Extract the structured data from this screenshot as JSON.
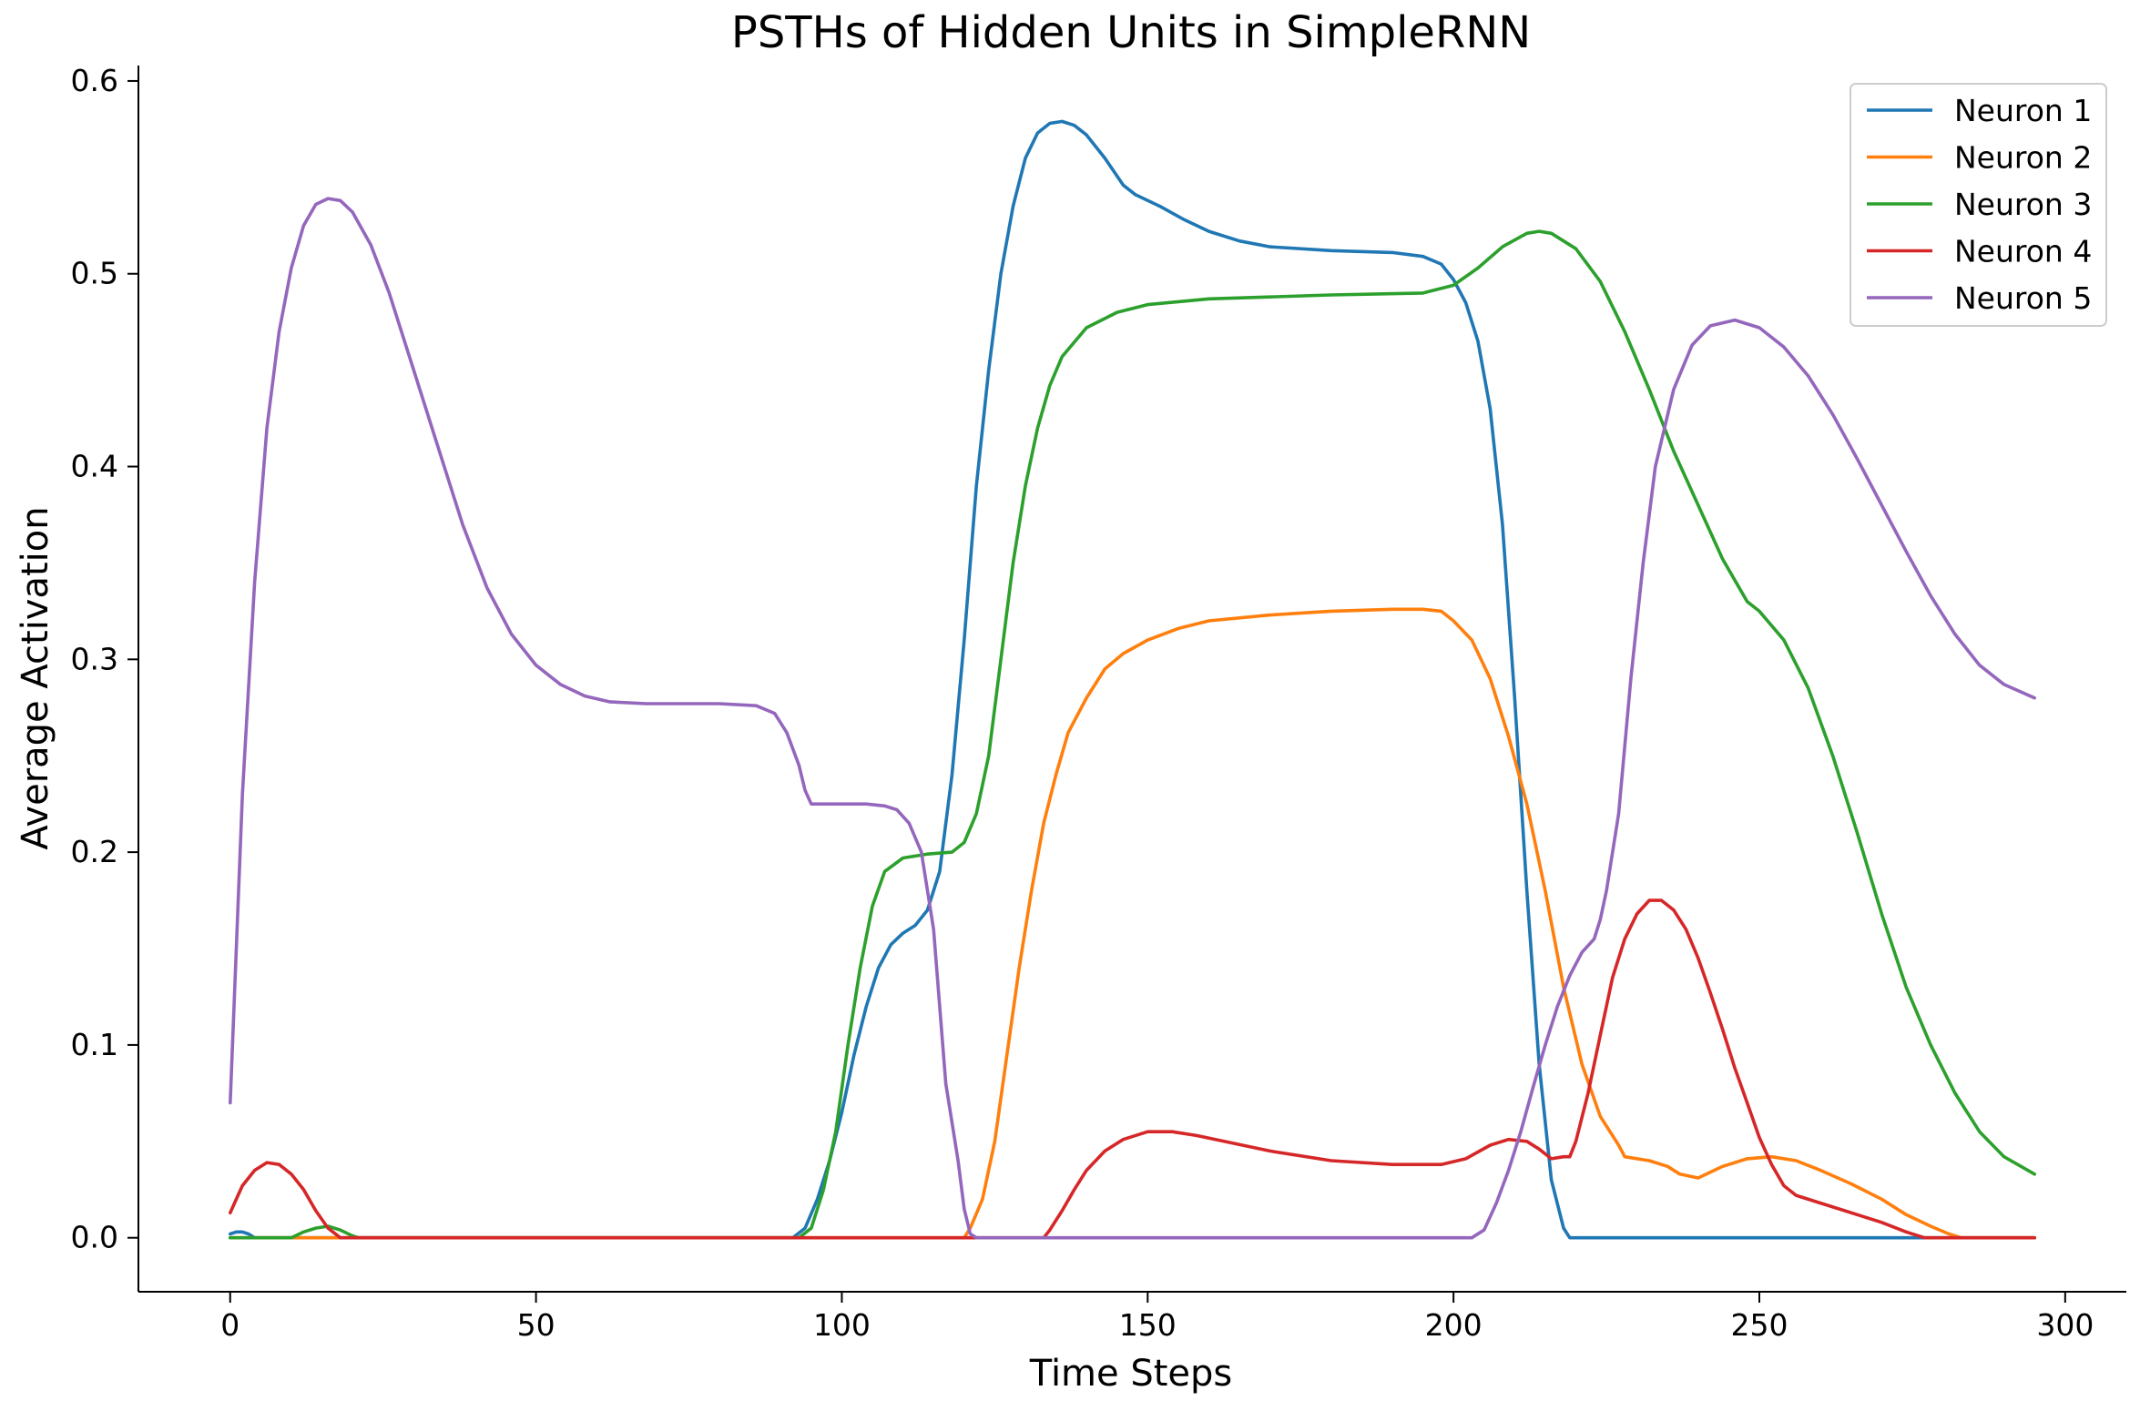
{
  "chart_data": {
    "type": "line",
    "title": "PSTHs of Hidden Units in SimpleRNN",
    "xlabel": "Time Steps",
    "ylabel": "Average Activation",
    "xlim": [
      -15,
      310
    ],
    "ylim": [
      -0.028,
      0.608
    ],
    "xticks": [
      0,
      50,
      100,
      150,
      200,
      250,
      300
    ],
    "yticks": [
      0.0,
      0.1,
      0.2,
      0.3,
      0.4,
      0.5,
      0.6
    ],
    "xtick_labels": [
      "0",
      "50",
      "100",
      "150",
      "200",
      "250",
      "300"
    ],
    "ytick_labels": [
      "0.0",
      "0.1",
      "0.2",
      "0.3",
      "0.4",
      "0.5",
      "0.6"
    ],
    "grid": false,
    "legend_position": "top-right",
    "series": [
      {
        "name": "Neuron 1",
        "color": "#1f77b4",
        "points": [
          [
            0,
            0.002
          ],
          [
            1,
            0.003
          ],
          [
            2,
            0.003
          ],
          [
            3,
            0.002
          ],
          [
            4,
            0.0
          ],
          [
            20,
            0.0
          ],
          [
            60,
            0.0
          ],
          [
            92,
            0.0
          ],
          [
            94,
            0.005
          ],
          [
            96,
            0.02
          ],
          [
            98,
            0.04
          ],
          [
            100,
            0.065
          ],
          [
            102,
            0.095
          ],
          [
            104,
            0.12
          ],
          [
            106,
            0.14
          ],
          [
            108,
            0.152
          ],
          [
            110,
            0.158
          ],
          [
            112,
            0.162
          ],
          [
            114,
            0.17
          ],
          [
            116,
            0.19
          ],
          [
            118,
            0.24
          ],
          [
            120,
            0.31
          ],
          [
            122,
            0.39
          ],
          [
            124,
            0.45
          ],
          [
            126,
            0.5
          ],
          [
            128,
            0.535
          ],
          [
            130,
            0.56
          ],
          [
            132,
            0.573
          ],
          [
            134,
            0.578
          ],
          [
            136,
            0.579
          ],
          [
            138,
            0.577
          ],
          [
            140,
            0.572
          ],
          [
            143,
            0.56
          ],
          [
            146,
            0.546
          ],
          [
            148,
            0.541
          ],
          [
            152,
            0.535
          ],
          [
            156,
            0.528
          ],
          [
            160,
            0.522
          ],
          [
            165,
            0.517
          ],
          [
            170,
            0.514
          ],
          [
            180,
            0.512
          ],
          [
            190,
            0.511
          ],
          [
            195,
            0.509
          ],
          [
            198,
            0.505
          ],
          [
            200,
            0.497
          ],
          [
            202,
            0.485
          ],
          [
            204,
            0.465
          ],
          [
            206,
            0.43
          ],
          [
            208,
            0.37
          ],
          [
            210,
            0.28
          ],
          [
            212,
            0.18
          ],
          [
            214,
            0.09
          ],
          [
            216,
            0.03
          ],
          [
            218,
            0.005
          ],
          [
            219,
            0.0
          ],
          [
            295,
            0.0
          ]
        ]
      },
      {
        "name": "Neuron 2",
        "color": "#ff7f0e",
        "points": [
          [
            0,
            0.0
          ],
          [
            60,
            0.0
          ],
          [
            120,
            0.0
          ],
          [
            121,
            0.005
          ],
          [
            123,
            0.02
          ],
          [
            125,
            0.05
          ],
          [
            127,
            0.095
          ],
          [
            129,
            0.14
          ],
          [
            131,
            0.18
          ],
          [
            133,
            0.215
          ],
          [
            135,
            0.24
          ],
          [
            137,
            0.262
          ],
          [
            140,
            0.28
          ],
          [
            143,
            0.295
          ],
          [
            146,
            0.303
          ],
          [
            150,
            0.31
          ],
          [
            155,
            0.316
          ],
          [
            160,
            0.32
          ],
          [
            170,
            0.323
          ],
          [
            180,
            0.325
          ],
          [
            190,
            0.326
          ],
          [
            195,
            0.326
          ],
          [
            198,
            0.325
          ],
          [
            200,
            0.32
          ],
          [
            203,
            0.31
          ],
          [
            206,
            0.29
          ],
          [
            209,
            0.26
          ],
          [
            212,
            0.225
          ],
          [
            215,
            0.18
          ],
          [
            218,
            0.13
          ],
          [
            221,
            0.09
          ],
          [
            224,
            0.063
          ],
          [
            227,
            0.048
          ],
          [
            228,
            0.042
          ],
          [
            232,
            0.04
          ],
          [
            235,
            0.037
          ],
          [
            237,
            0.033
          ],
          [
            240,
            0.031
          ],
          [
            244,
            0.037
          ],
          [
            248,
            0.041
          ],
          [
            252,
            0.042
          ],
          [
            256,
            0.04
          ],
          [
            260,
            0.035
          ],
          [
            265,
            0.028
          ],
          [
            270,
            0.02
          ],
          [
            274,
            0.012
          ],
          [
            278,
            0.006
          ],
          [
            281,
            0.002
          ],
          [
            283,
            0.0
          ],
          [
            295,
            0.0
          ]
        ]
      },
      {
        "name": "Neuron 3",
        "color": "#2ca02c",
        "points": [
          [
            0,
            0.0
          ],
          [
            8,
            0.0
          ],
          [
            10,
            0.0
          ],
          [
            12,
            0.003
          ],
          [
            14,
            0.005
          ],
          [
            16,
            0.006
          ],
          [
            18,
            0.004
          ],
          [
            20,
            0.001
          ],
          [
            21,
            0.0
          ],
          [
            60,
            0.0
          ],
          [
            93,
            0.0
          ],
          [
            95,
            0.005
          ],
          [
            97,
            0.025
          ],
          [
            99,
            0.055
          ],
          [
            101,
            0.1
          ],
          [
            103,
            0.14
          ],
          [
            105,
            0.172
          ],
          [
            107,
            0.19
          ],
          [
            110,
            0.197
          ],
          [
            114,
            0.199
          ],
          [
            118,
            0.2
          ],
          [
            120,
            0.205
          ],
          [
            122,
            0.22
          ],
          [
            124,
            0.25
          ],
          [
            126,
            0.3
          ],
          [
            128,
            0.35
          ],
          [
            130,
            0.39
          ],
          [
            132,
            0.42
          ],
          [
            134,
            0.442
          ],
          [
            136,
            0.457
          ],
          [
            140,
            0.472
          ],
          [
            145,
            0.48
          ],
          [
            150,
            0.484
          ],
          [
            160,
            0.487
          ],
          [
            170,
            0.488
          ],
          [
            180,
            0.489
          ],
          [
            195,
            0.49
          ],
          [
            200,
            0.494
          ],
          [
            204,
            0.503
          ],
          [
            208,
            0.514
          ],
          [
            212,
            0.521
          ],
          [
            214,
            0.522
          ],
          [
            216,
            0.521
          ],
          [
            220,
            0.513
          ],
          [
            224,
            0.496
          ],
          [
            228,
            0.47
          ],
          [
            232,
            0.44
          ],
          [
            236,
            0.408
          ],
          [
            240,
            0.38
          ],
          [
            244,
            0.352
          ],
          [
            248,
            0.33
          ],
          [
            250,
            0.325
          ],
          [
            254,
            0.31
          ],
          [
            258,
            0.285
          ],
          [
            262,
            0.25
          ],
          [
            266,
            0.21
          ],
          [
            270,
            0.168
          ],
          [
            274,
            0.13
          ],
          [
            278,
            0.1
          ],
          [
            282,
            0.075
          ],
          [
            286,
            0.055
          ],
          [
            290,
            0.042
          ],
          [
            295,
            0.033
          ]
        ]
      },
      {
        "name": "Neuron 4",
        "color": "#d62728",
        "points": [
          [
            0,
            0.013
          ],
          [
            1,
            0.02
          ],
          [
            2,
            0.027
          ],
          [
            4,
            0.035
          ],
          [
            6,
            0.039
          ],
          [
            8,
            0.038
          ],
          [
            10,
            0.033
          ],
          [
            12,
            0.025
          ],
          [
            14,
            0.014
          ],
          [
            16,
            0.005
          ],
          [
            18,
            0.0
          ],
          [
            60,
            0.0
          ],
          [
            120,
            0.0
          ],
          [
            133,
            0.0
          ],
          [
            134,
            0.004
          ],
          [
            136,
            0.014
          ],
          [
            138,
            0.025
          ],
          [
            140,
            0.035
          ],
          [
            143,
            0.045
          ],
          [
            146,
            0.051
          ],
          [
            150,
            0.055
          ],
          [
            154,
            0.055
          ],
          [
            158,
            0.053
          ],
          [
            164,
            0.049
          ],
          [
            170,
            0.045
          ],
          [
            180,
            0.04
          ],
          [
            190,
            0.038
          ],
          [
            198,
            0.038
          ],
          [
            202,
            0.041
          ],
          [
            206,
            0.048
          ],
          [
            209,
            0.051
          ],
          [
            212,
            0.05
          ],
          [
            214,
            0.046
          ],
          [
            216,
            0.041
          ],
          [
            218,
            0.042
          ],
          [
            219,
            0.042
          ],
          [
            220,
            0.05
          ],
          [
            222,
            0.075
          ],
          [
            224,
            0.105
          ],
          [
            226,
            0.135
          ],
          [
            228,
            0.155
          ],
          [
            230,
            0.168
          ],
          [
            232,
            0.175
          ],
          [
            234,
            0.175
          ],
          [
            236,
            0.17
          ],
          [
            238,
            0.16
          ],
          [
            240,
            0.145
          ],
          [
            242,
            0.127
          ],
          [
            244,
            0.108
          ],
          [
            246,
            0.088
          ],
          [
            248,
            0.07
          ],
          [
            250,
            0.052
          ],
          [
            252,
            0.038
          ],
          [
            254,
            0.027
          ],
          [
            256,
            0.022
          ],
          [
            260,
            0.018
          ],
          [
            265,
            0.013
          ],
          [
            270,
            0.008
          ],
          [
            274,
            0.003
          ],
          [
            277,
            0.0
          ],
          [
            295,
            0.0
          ]
        ]
      },
      {
        "name": "Neuron 5",
        "color": "#9467bd",
        "points": [
          [
            0,
            0.07
          ],
          [
            1,
            0.15
          ],
          [
            2,
            0.23
          ],
          [
            4,
            0.34
          ],
          [
            6,
            0.42
          ],
          [
            8,
            0.47
          ],
          [
            10,
            0.503
          ],
          [
            12,
            0.525
          ],
          [
            14,
            0.536
          ],
          [
            16,
            0.539
          ],
          [
            18,
            0.538
          ],
          [
            20,
            0.532
          ],
          [
            23,
            0.515
          ],
          [
            26,
            0.49
          ],
          [
            30,
            0.45
          ],
          [
            34,
            0.41
          ],
          [
            38,
            0.37
          ],
          [
            42,
            0.337
          ],
          [
            46,
            0.313
          ],
          [
            50,
            0.297
          ],
          [
            54,
            0.287
          ],
          [
            58,
            0.281
          ],
          [
            62,
            0.278
          ],
          [
            68,
            0.277
          ],
          [
            80,
            0.277
          ],
          [
            86,
            0.276
          ],
          [
            89,
            0.272
          ],
          [
            91,
            0.262
          ],
          [
            93,
            0.245
          ],
          [
            94,
            0.232
          ],
          [
            95,
            0.225
          ],
          [
            97,
            0.225
          ],
          [
            100,
            0.225
          ],
          [
            104,
            0.225
          ],
          [
            107,
            0.224
          ],
          [
            109,
            0.222
          ],
          [
            111,
            0.215
          ],
          [
            113,
            0.2
          ],
          [
            115,
            0.16
          ],
          [
            117,
            0.08
          ],
          [
            119,
            0.04
          ],
          [
            120,
            0.015
          ],
          [
            121,
            0.002
          ],
          [
            122,
            0.0
          ],
          [
            150,
            0.0
          ],
          [
            203,
            0.0
          ],
          [
            205,
            0.004
          ],
          [
            207,
            0.018
          ],
          [
            209,
            0.035
          ],
          [
            211,
            0.055
          ],
          [
            213,
            0.078
          ],
          [
            215,
            0.1
          ],
          [
            217,
            0.12
          ],
          [
            219,
            0.136
          ],
          [
            221,
            0.148
          ],
          [
            223,
            0.155
          ],
          [
            224,
            0.165
          ],
          [
            225,
            0.18
          ],
          [
            227,
            0.22
          ],
          [
            229,
            0.29
          ],
          [
            231,
            0.35
          ],
          [
            233,
            0.4
          ],
          [
            236,
            0.44
          ],
          [
            239,
            0.463
          ],
          [
            242,
            0.473
          ],
          [
            246,
            0.476
          ],
          [
            250,
            0.472
          ],
          [
            254,
            0.462
          ],
          [
            258,
            0.447
          ],
          [
            262,
            0.427
          ],
          [
            266,
            0.404
          ],
          [
            270,
            0.38
          ],
          [
            274,
            0.356
          ],
          [
            278,
            0.333
          ],
          [
            282,
            0.313
          ],
          [
            286,
            0.297
          ],
          [
            290,
            0.287
          ],
          [
            295,
            0.28
          ]
        ]
      }
    ]
  }
}
